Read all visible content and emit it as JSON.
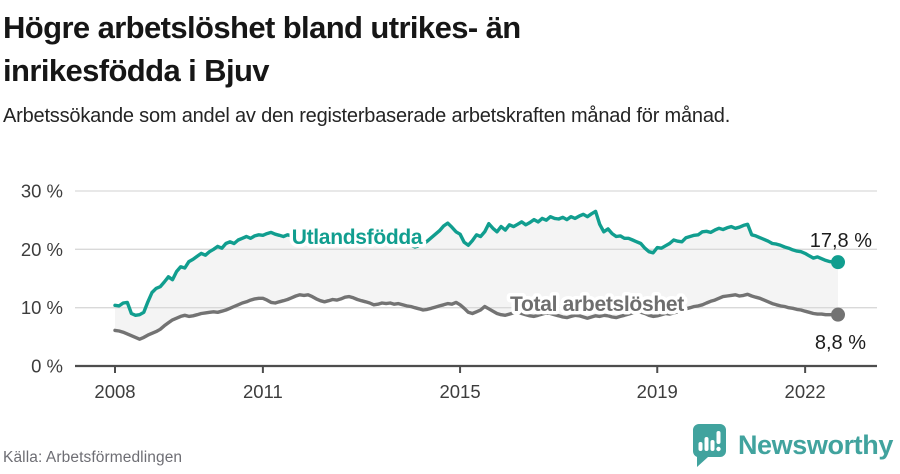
{
  "header": {
    "title_line1": "Högre arbetslöshet bland utrikes- än",
    "title_line2": "inrikesfödda i Bjuv",
    "subtitle": "Arbetssökande som andel av den registerbaserade arbetskraften månad för månad."
  },
  "footer": {
    "source": "Källa: Arbetsförmedlingen",
    "brand": "Newsworthy"
  },
  "colors": {
    "utlandsfodda_line": "#119e8f",
    "total_line": "#737373",
    "total_label": "#6e6e6e",
    "between_fill": "#f4f4f4",
    "gridline": "#d9d9d9",
    "axis": "#4d4d4d",
    "tick_text": "#3d3d3d",
    "end_label_text": "#1c1c1c",
    "brand_teal": "#41a39e"
  },
  "chart_data": {
    "type": "line",
    "title": "Högre arbetslöshet bland utrikes- än inrikesfödda i Bjuv",
    "subtitle": "Arbetssökande som andel av den registerbaserade arbetskraften månad för månad.",
    "xlabel": "",
    "ylabel": "",
    "y_unit": "%",
    "ylim": [
      0,
      30
    ],
    "grid": "horizontal",
    "legend_position": "inline-labels",
    "frequency": "monthly",
    "x_start": "2008-01",
    "x_end": "2022-09",
    "y_ticks": [
      {
        "value": 0,
        "label": "0 %"
      },
      {
        "value": 10,
        "label": "10 %"
      },
      {
        "value": 20,
        "label": "20 %"
      },
      {
        "value": 30,
        "label": "30 %"
      }
    ],
    "x_ticks": [
      {
        "month_index": 0,
        "label": "2008"
      },
      {
        "month_index": 36,
        "label": "2011"
      },
      {
        "month_index": 84,
        "label": "2015"
      },
      {
        "month_index": 132,
        "label": "2019"
      },
      {
        "month_index": 168,
        "label": "2022"
      }
    ],
    "series": [
      {
        "key": "utlandsfodda",
        "name": "Utlandsfödda",
        "color": "#119e8f",
        "end_label": "17,8 %",
        "end_value": 17.8,
        "values": [
          10.4,
          10.3,
          10.8,
          10.9,
          9.0,
          8.7,
          8.8,
          9.2,
          11.0,
          12.6,
          13.3,
          13.6,
          14.4,
          15.3,
          14.8,
          16.2,
          17.0,
          16.8,
          17.9,
          18.3,
          18.8,
          19.3,
          19.0,
          19.6,
          20.0,
          20.5,
          20.2,
          21.0,
          21.3,
          21.0,
          21.6,
          21.9,
          22.2,
          21.9,
          22.3,
          22.5,
          22.4,
          22.7,
          22.9,
          22.6,
          22.4,
          22.2,
          22.5,
          22.3,
          22.1,
          22.4,
          22.6,
          22.3,
          22.1,
          21.9,
          22.2,
          22.4,
          22.1,
          21.8,
          22.0,
          22.3,
          22.5,
          22.2,
          21.9,
          21.7,
          21.9,
          22.2,
          22.4,
          22.1,
          21.8,
          21.6,
          21.9,
          22.1,
          21.8,
          21.5,
          21.3,
          21.0,
          20.8,
          20.4,
          20.6,
          20.9,
          21.4,
          22.0,
          22.6,
          23.2,
          24.0,
          24.5,
          23.8,
          23.0,
          22.6,
          21.2,
          20.7,
          21.5,
          22.5,
          22.2,
          23.0,
          24.4,
          23.6,
          23.0,
          23.9,
          23.3,
          24.2,
          23.9,
          24.3,
          24.7,
          24.2,
          24.6,
          25.1,
          24.7,
          25.3,
          25.0,
          25.6,
          25.3,
          25.2,
          25.5,
          25.1,
          25.6,
          25.3,
          25.7,
          26.0,
          25.6,
          26.1,
          26.5,
          24.3,
          23.0,
          23.5,
          22.7,
          22.2,
          22.3,
          21.9,
          21.9,
          21.6,
          21.3,
          21.0,
          20.2,
          19.6,
          19.4,
          20.3,
          20.2,
          20.6,
          21.0,
          21.6,
          21.4,
          21.3,
          22.0,
          22.2,
          22.4,
          22.5,
          23.0,
          23.1,
          22.9,
          23.3,
          23.6,
          23.4,
          23.7,
          23.9,
          23.6,
          23.8,
          24.1,
          24.3,
          22.5,
          22.3,
          22.0,
          21.7,
          21.4,
          21.0,
          20.9,
          20.7,
          20.4,
          20.2,
          19.9,
          19.7,
          19.6,
          19.3,
          18.9,
          18.5,
          18.7,
          18.4,
          18.1,
          17.9,
          17.8,
          17.8
        ]
      },
      {
        "key": "total",
        "name": "Total arbetslöshet",
        "color": "#737373",
        "end_label": "8,8 %",
        "end_value": 8.8,
        "values": [
          6.1,
          6.0,
          5.8,
          5.5,
          5.2,
          4.9,
          4.6,
          4.9,
          5.3,
          5.6,
          5.9,
          6.3,
          6.9,
          7.4,
          7.9,
          8.2,
          8.5,
          8.7,
          8.5,
          8.6,
          8.8,
          9.0,
          9.1,
          9.2,
          9.3,
          9.2,
          9.4,
          9.6,
          9.9,
          10.2,
          10.5,
          10.8,
          11.0,
          11.3,
          11.5,
          11.6,
          11.6,
          11.3,
          10.9,
          10.8,
          11.0,
          11.2,
          11.4,
          11.7,
          12.0,
          12.2,
          12.1,
          12.2,
          11.9,
          11.5,
          11.2,
          11.0,
          11.2,
          11.4,
          11.3,
          11.5,
          11.8,
          11.9,
          11.7,
          11.4,
          11.2,
          11.0,
          10.8,
          10.5,
          10.6,
          10.8,
          10.7,
          10.8,
          10.6,
          10.7,
          10.5,
          10.3,
          10.2,
          10.0,
          9.8,
          9.6,
          9.7,
          9.9,
          10.1,
          10.3,
          10.5,
          10.7,
          10.6,
          10.9,
          10.5,
          9.9,
          9.2,
          9.0,
          9.3,
          9.6,
          10.2,
          9.8,
          9.4,
          9.0,
          8.8,
          8.7,
          8.9,
          9.1,
          9.3,
          9.0,
          8.8,
          8.6,
          8.5,
          8.7,
          8.9,
          9.1,
          9.0,
          8.8,
          8.6,
          8.4,
          8.3,
          8.5,
          8.7,
          8.6,
          8.4,
          8.2,
          8.4,
          8.6,
          8.5,
          8.7,
          8.6,
          8.4,
          8.3,
          8.5,
          8.7,
          8.9,
          9.1,
          9.3,
          9.2,
          9.0,
          8.7,
          8.5,
          8.6,
          8.8,
          9.0,
          8.9,
          9.1,
          9.3,
          9.5,
          9.8,
          10.0,
          10.2,
          10.3,
          10.5,
          10.8,
          11.1,
          11.3,
          11.6,
          11.9,
          12.0,
          12.1,
          12.2,
          12.0,
          12.1,
          12.3,
          12.0,
          11.8,
          11.6,
          11.3,
          11.0,
          10.7,
          10.5,
          10.3,
          10.2,
          10.0,
          9.9,
          9.7,
          9.6,
          9.4,
          9.2,
          9.0,
          8.9,
          8.9,
          8.8,
          8.8,
          8.8,
          8.8
        ]
      }
    ]
  }
}
